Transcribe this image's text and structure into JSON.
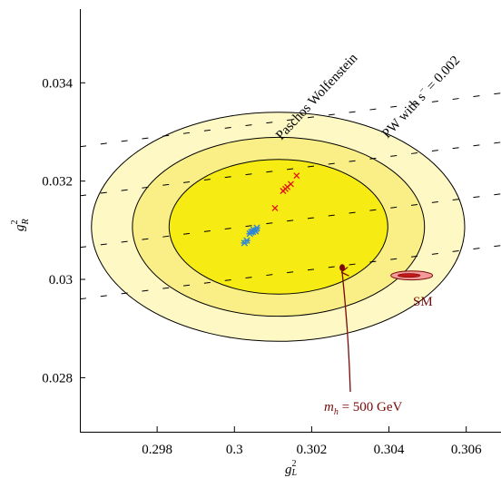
{
  "chart_data": {
    "type": "scatter",
    "title": "",
    "xlabel": "g",
    "xlabel_sup": "2",
    "xlabel_sub": "L",
    "ylabel": "g",
    "ylabel_sup": "2",
    "ylabel_sub": "R",
    "xlim": [
      0.296,
      0.3069
    ],
    "ylim": [
      0.0269,
      0.0355
    ],
    "x_ticks": [
      0.298,
      0.3,
      0.302,
      0.304,
      0.306
    ],
    "x_tick_labels": [
      "0.298",
      "0.3",
      "0.302",
      "0.304",
      "0.306"
    ],
    "y_ticks": [
      0.028,
      0.03,
      0.032,
      0.034
    ],
    "y_tick_labels": [
      "0.028",
      "0.03",
      "0.032",
      "0.034"
    ],
    "grid": false,
    "ellipses": [
      {
        "cx": 0.30113,
        "cy": 0.03107,
        "rx": 0.00483,
        "ry": 0.00233,
        "fill": "#fdf8c4"
      },
      {
        "cx": 0.30114,
        "cy": 0.03107,
        "rx": 0.00378,
        "ry": 0.00182,
        "fill": "#f9ef86"
      },
      {
        "cx": 0.30114,
        "cy": 0.03107,
        "rx": 0.00283,
        "ry": 0.00137,
        "fill": "#f6ec14"
      }
    ],
    "sm_ellipse": {
      "cx": 0.30459,
      "cy": 0.03008,
      "rx": 0.00054,
      "ry": 9e-05,
      "inner_rx": 0.00029,
      "inner_ry": 4e-05,
      "fill": "#f39a9a",
      "inner_fill": "#c01818"
    },
    "dashed_lines": [
      {
        "name": "Paschos Wolfenstein",
        "intercept": 0
      },
      {
        "name": "",
        "intercept": 0.00105
      },
      {
        "name": "",
        "intercept": 0.0021
      },
      {
        "name": "PW with s⁻ = 0.002",
        "intercept": 0.0031
      }
    ],
    "blue_points": [
      {
        "x": 0.30026,
        "y": 0.03074
      },
      {
        "x": 0.30032,
        "y": 0.03079
      },
      {
        "x": 0.3004,
        "y": 0.03093
      },
      {
        "x": 0.30044,
        "y": 0.03096
      },
      {
        "x": 0.30048,
        "y": 0.03097
      },
      {
        "x": 0.30055,
        "y": 0.03098
      },
      {
        "x": 0.3005,
        "y": 0.03101
      },
      {
        "x": 0.30058,
        "y": 0.03105
      }
    ],
    "red_points": [
      {
        "x": 0.30105,
        "y": 0.03145
      },
      {
        "x": 0.30126,
        "y": 0.0318
      },
      {
        "x": 0.30132,
        "y": 0.03184
      },
      {
        "x": 0.30137,
        "y": 0.03188
      },
      {
        "x": 0.30146,
        "y": 0.03194
      },
      {
        "x": 0.30161,
        "y": 0.03211
      }
    ],
    "higgs_point": {
      "x": 0.30279,
      "y": 0.03024
    },
    "annotations": {
      "paschos": "Paschos Wolfenstein",
      "pw": "PW with s",
      "pw_sup": "−",
      "pw_value": " = 0.002",
      "sm": "SM",
      "mh_symbol": "m",
      "mh_sub": "h",
      "mh_value": "  =  500 GeV"
    },
    "colors": {
      "blue": "#2f86d6",
      "red": "#e11414",
      "higgs": "#7a0a0a",
      "dash": "#000000"
    }
  }
}
